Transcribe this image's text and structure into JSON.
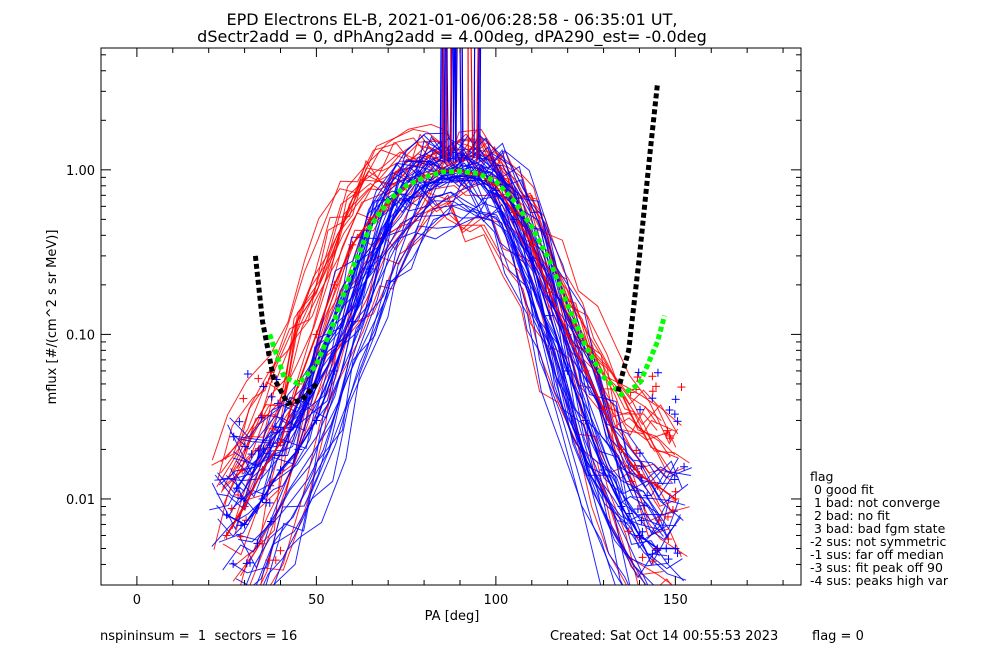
{
  "title_line1": "EPD Electrons EL-B, 2021-01-06/06:28:58 - 06:35:01 UT,",
  "title_line2": "dSectr2add = 0, dPhAng2add = 4.00deg, dPA290_est=  -0.0deg",
  "footer": {
    "left": "nspininsum =  1  sectors = 16",
    "created": "Created: Sat Oct 14 00:55:53 2023",
    "flag": "flag = 0"
  },
  "legend": {
    "title": "flag",
    "items": [
      " 0 good fit",
      " 1 bad: not converge",
      " 2 bad: no fit",
      " 3 bad: bad fgm state",
      "-1 sus: far off median",
      "-2 sus: not symmetric",
      "-3 sus: fit peak off 90",
      "-4 sus: peaks high var"
    ]
  },
  "chart_data": {
    "type": "line",
    "xlabel": "PA [deg]",
    "ylabel": "mflux [#/(cm^2 s sr MeV)]",
    "xlim": [
      -10,
      185
    ],
    "ylim": [
      0.003,
      5.5
    ],
    "yscale": "log",
    "xticks": [
      0,
      50,
      100,
      150
    ],
    "xtick_labels": [
      "0",
      "50",
      "100",
      "150"
    ],
    "yticks": [
      0.01,
      0.1,
      1.0
    ],
    "ytick_labels": [
      "0.01",
      "0.10",
      "1.00"
    ],
    "colors": {
      "red_traces": "#ff0000",
      "blue_traces": "#0000ff",
      "green_fit": "#00ff00",
      "black_fit": "#000000"
    },
    "series": [
      {
        "color": "#ff0000",
        "x": [
          25,
          30,
          35,
          40,
          45,
          50,
          55,
          60,
          65,
          70,
          75,
          80,
          85,
          90,
          95,
          100,
          105,
          110,
          115,
          120,
          125,
          130,
          135,
          140,
          145,
          150
        ],
        "y": [
          0.006,
          0.009,
          0.015,
          0.022,
          0.05,
          0.1,
          0.2,
          0.35,
          0.5,
          0.62,
          0.78,
          0.92,
          0.98,
          0.98,
          0.95,
          0.8,
          0.55,
          0.35,
          0.18,
          0.1,
          0.06,
          0.035,
          0.02,
          0.014,
          0.012,
          0.01
        ]
      },
      {
        "color": "#0000ff",
        "x": [
          25,
          30,
          35,
          40,
          45,
          50,
          55,
          60,
          65,
          70,
          75,
          80,
          85,
          90,
          95,
          100,
          105,
          110,
          115,
          120,
          125,
          130,
          135,
          140,
          145,
          150
        ],
        "y": [
          0.008,
          0.007,
          0.01,
          0.015,
          0.02,
          0.03,
          0.06,
          0.12,
          0.25,
          0.45,
          0.65,
          0.8,
          0.88,
          0.92,
          0.88,
          0.75,
          0.5,
          0.28,
          0.13,
          0.06,
          0.03,
          0.015,
          0.009,
          0.006,
          0.005,
          0.005
        ]
      },
      {
        "color": "#00ff00",
        "style": "dashed",
        "x": [
          37,
          41,
          45,
          50,
          55,
          60,
          65,
          70,
          75,
          80,
          85,
          90,
          95,
          100,
          105,
          110,
          115,
          120,
          125,
          130,
          135,
          140,
          145,
          147
        ],
        "y": [
          0.1,
          0.055,
          0.05,
          0.065,
          0.12,
          0.25,
          0.45,
          0.65,
          0.8,
          0.9,
          0.97,
          0.98,
          0.95,
          0.85,
          0.65,
          0.45,
          0.28,
          0.15,
          0.085,
          0.055,
          0.043,
          0.05,
          0.09,
          0.13
        ]
      },
      {
        "color": "#000000",
        "style": "dashed",
        "x": [
          33,
          35,
          38,
          42,
          46,
          50
        ],
        "y": [
          0.3,
          0.12,
          0.055,
          0.038,
          0.04,
          0.05
        ]
      },
      {
        "color": "#000000",
        "style": "dashed",
        "x": [
          134,
          137,
          140,
          143,
          145
        ],
        "y": [
          0.045,
          0.08,
          0.3,
          1.3,
          3.3
        ]
      }
    ]
  }
}
